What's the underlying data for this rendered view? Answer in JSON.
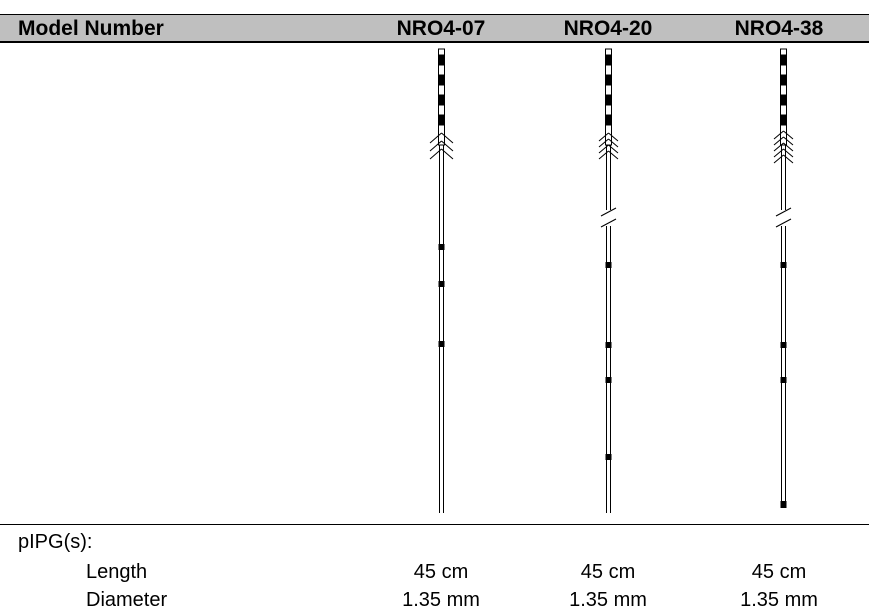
{
  "table": {
    "header_label": "Model Number",
    "models": [
      "NRO4-07",
      "NRO4-20",
      "NRO4-38"
    ]
  },
  "specs": {
    "group_label": "pIPG(s):",
    "rows": [
      {
        "label": "Length",
        "values": [
          "45 cm",
          "45 cm",
          "45 cm"
        ]
      },
      {
        "label": "Diameter",
        "values": [
          "1.35 mm",
          "1.35 mm",
          "1.35 mm"
        ]
      }
    ]
  }
}
